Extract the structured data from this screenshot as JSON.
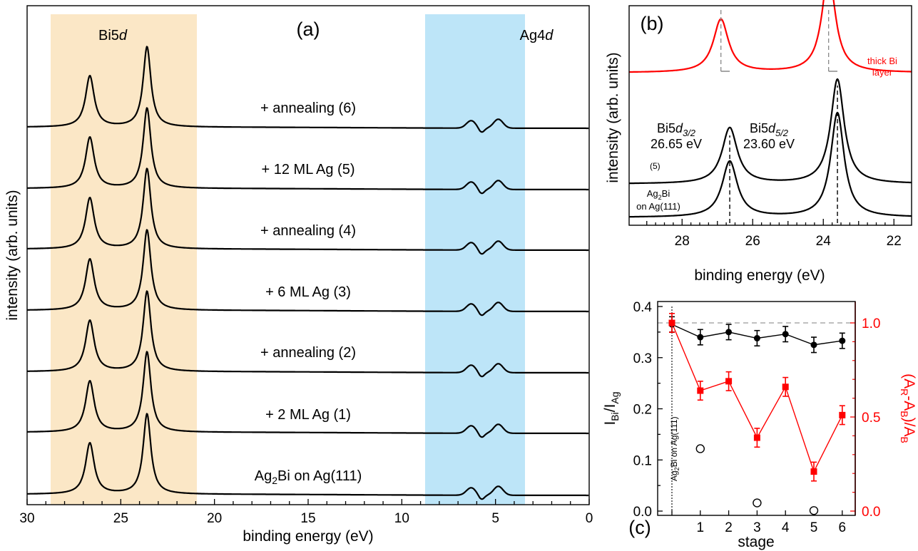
{
  "chart_data": [
    {
      "panel": "(a)",
      "type": "line",
      "xlabel": "binding energy (eV)",
      "ylabel": "intensity (arb. units)",
      "xlim": [
        30,
        0
      ],
      "x_ticks": [
        30,
        25,
        20,
        15,
        10,
        5,
        0
      ],
      "x_tick_labels": [
        "30",
        "25",
        "20",
        "15",
        "10",
        "5",
        "0"
      ],
      "shaded_regions": [
        {
          "label_prefix": "Bi5",
          "label_italic": "d",
          "from": 29,
          "to": 21,
          "color": "#fbe7c6"
        },
        {
          "label_prefix": "Ag4",
          "label_italic": "d",
          "from": 8.5,
          "to": 3,
          "color": "#bde5f8"
        }
      ],
      "series": [
        {
          "label_main": "Ag",
          "label_sub": "2",
          "label_rest": "Bi on Ag(111)"
        },
        {
          "label_main": "+ 2 ML Ag (1)",
          "label_sub": "",
          "label_rest": ""
        },
        {
          "label_main": "+ annealing (2)",
          "label_sub": "",
          "label_rest": ""
        },
        {
          "label_main": "+ 6 ML Ag (3)",
          "label_sub": "",
          "label_rest": ""
        },
        {
          "label_main": "+ annealing (4)",
          "label_sub": "",
          "label_rest": ""
        },
        {
          "label_main": "+ 12 ML Ag (5)",
          "label_sub": "",
          "label_rest": ""
        },
        {
          "label_main": "+ annealing (6)",
          "label_sub": "",
          "label_rest": ""
        }
      ],
      "peaks": {
        "bi5d32": 26.65,
        "bi5d52": 23.6
      }
    },
    {
      "panel": "(b)",
      "type": "line",
      "xlabel": "binding energy (eV)",
      "ylabel": "intensity (arb. units)",
      "xlim": [
        29.5,
        21.5
      ],
      "x_ticks": [
        28,
        26,
        24,
        22
      ],
      "x_tick_labels": [
        "28",
        "26",
        "24",
        "22"
      ],
      "series": [
        {
          "name": "Ag2Bi on Ag(111)",
          "label_line1": "Ag",
          "label_line1_sub": "2",
          "label_line1_rest": "Bi",
          "label_line2": "on Ag(111)",
          "peaks": [
            26.65,
            23.6
          ],
          "color": "#000000"
        },
        {
          "name": "(5)",
          "label": "(5)",
          "peaks": [
            26.65,
            23.6
          ],
          "color": "#000000"
        },
        {
          "name": "thick Bi layer",
          "label_line1": "thick Bi",
          "label_line2": "layer",
          "peaks": [
            26.9,
            23.85
          ],
          "color": "#ff0000"
        }
      ],
      "annotations": [
        {
          "prefix": "Bi5",
          "italic": "d",
          "sub": "3/2",
          "value": "26.65 eV"
        },
        {
          "prefix": "Bi5",
          "italic": "d",
          "sub": "5/2",
          "value": "23.60 eV"
        }
      ]
    },
    {
      "panel": "(c)",
      "type": "scatter",
      "xlabel": "stage",
      "ylabel_left": {
        "main": "I",
        "sub1": "Bi",
        "mid": "/I",
        "sub2": "Ag"
      },
      "ylabel_right": {
        "p1": "(A",
        "s1": "R",
        "p2": "-A",
        "s2": "B",
        "p3": ")/A",
        "s3": "B"
      },
      "x": [
        0,
        1,
        2,
        3,
        4,
        5,
        6
      ],
      "x_tick_labels": [
        "1",
        "2",
        "3",
        "4",
        "5",
        "6"
      ],
      "ylim_left": [
        0,
        0.4
      ],
      "y_ticks_left": [
        "0.00",
        "0.10",
        "0.20",
        "0.30",
        "0.40"
      ],
      "y_tick_labels_left": [
        "0.0",
        "0.1",
        "0.2",
        "0.3",
        "0.4"
      ],
      "ylim_right": [
        0,
        1.1
      ],
      "y_tick_labels_right": [
        "0.0",
        "0.5",
        "1.0"
      ],
      "vline_label": {
        "main": "Ag",
        "sub": "2",
        "rest": "Bi on Ag(111)"
      },
      "series": [
        {
          "name": "IBi/IAg",
          "axis": "left",
          "marker": "filled-circle",
          "color": "#000000",
          "values": [
            0.365,
            0.34,
            0.35,
            0.338,
            0.346,
            0.325,
            0.333
          ],
          "errors": [
            0.015,
            0.015,
            0.015,
            0.015,
            0.015,
            0.015,
            0.015
          ]
        },
        {
          "name": "(AR-AB)/AB",
          "axis": "right",
          "marker": "filled-square",
          "color": "#ff0000",
          "values": [
            1.0,
            0.64,
            0.69,
            0.39,
            0.66,
            0.21,
            0.51
          ],
          "errors": [
            0.05,
            0.05,
            0.05,
            0.05,
            0.05,
            0.05,
            0.05
          ]
        },
        {
          "name": "open",
          "axis": "left",
          "marker": "open-circle",
          "color": "#000000",
          "x": [
            1,
            3,
            5
          ],
          "values": [
            0.122,
            0.016,
            0.001
          ]
        }
      ],
      "reference_line": {
        "axis": "right",
        "value": 1.0,
        "style": "dashed",
        "color": "#aaaaaa"
      }
    }
  ]
}
